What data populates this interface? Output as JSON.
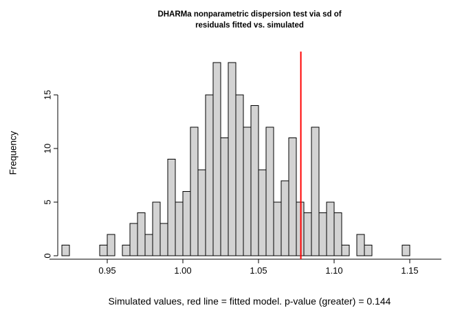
{
  "chart_data": {
    "type": "bar",
    "subtype": "histogram",
    "title_lines": [
      "DHARMa nonparametric dispersion test via sd of",
      "residuals fitted vs. simulated"
    ],
    "xlabel": "Simulated values, red line = fitted model. p-value (greater) = 0.144",
    "ylabel": "Frequency",
    "p_value": 0.144,
    "alternative": "greater",
    "bins": {
      "start": 0.92,
      "width": 0.005
    },
    "counts": [
      1,
      0,
      0,
      0,
      0,
      1,
      2,
      0,
      1,
      3,
      4,
      2,
      5,
      3,
      9,
      5,
      6,
      12,
      8,
      15,
      18,
      11,
      18,
      15,
      12,
      14,
      8,
      12,
      5,
      7,
      11,
      5,
      4,
      12,
      4,
      5,
      4,
      1,
      0,
      2,
      1,
      0,
      0,
      0,
      0,
      1
    ],
    "red_line_x": 1.078,
    "x_ticks": [
      {
        "value": 0.95,
        "label": "0.95"
      },
      {
        "value": 1.0,
        "label": "1.00"
      },
      {
        "value": 1.05,
        "label": "1.05"
      },
      {
        "value": 1.1,
        "label": "1.10"
      },
      {
        "value": 1.15,
        "label": "1.15"
      }
    ],
    "y_ticks": [
      {
        "value": 0,
        "label": "0"
      },
      {
        "value": 5,
        "label": "5"
      },
      {
        "value": 10,
        "label": "10"
      },
      {
        "value": 15,
        "label": "15"
      }
    ],
    "xlim": [
      0.917,
      1.171
    ],
    "ylim": [
      0,
      18.7
    ],
    "grid": false,
    "legend": "none",
    "colors": {
      "bar_fill": "#d3d3d3",
      "bar_stroke": "#000000",
      "red_line": "#ff0000",
      "axis": "#000000",
      "text": "#000000",
      "background": "#ffffff"
    }
  }
}
